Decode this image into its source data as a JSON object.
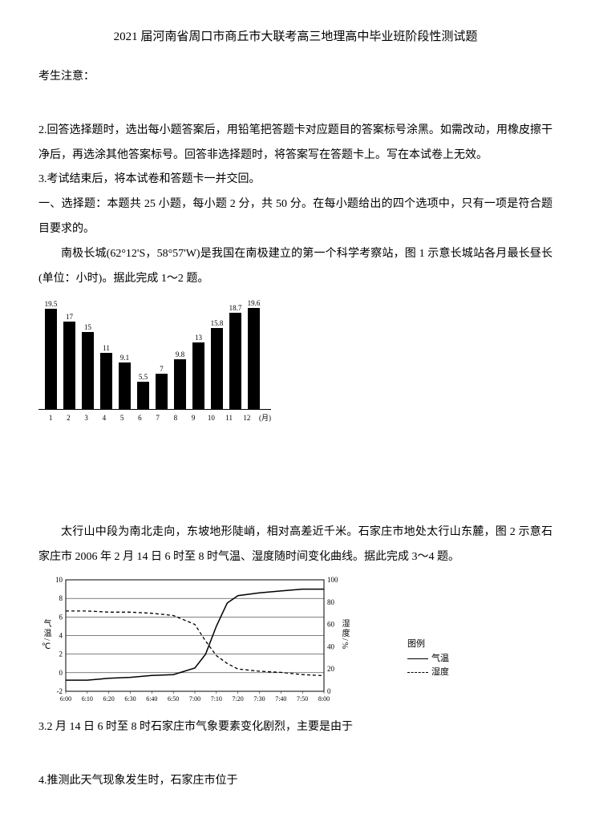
{
  "title": "2021 届河南省周口市商丘市大联考高三地理高中毕业班阶段性测试题",
  "notice_header": "考生注意：",
  "instructions": {
    "i2": "2.回答选择题时，选出每小题答案后，用铅笔把答题卡对应题目的答案标号涂黑。如需改动，用橡皮擦干净后，再选涂其他答案标号。回答非选择题时，将答案写在答题卡上。写在本试卷上无效。",
    "i3": "3.考试结束后，将本试卷和答题卡一并交回。",
    "section1": "一、选择题：本题共 25 小题，每小题 2 分，共 50 分。在每小题给出的四个选项中，只有一项是符合题目要求的。"
  },
  "passage1": "南极长城(62°12'S，58°57'W)是我国在南极建立的第一个科学考察站，图 1 示意长城站各月最长昼长(单位：小时)。据此完成 1～2 题。",
  "bar_chart": {
    "type": "bar",
    "categories": [
      "1",
      "2",
      "3",
      "4",
      "5",
      "6",
      "7",
      "8",
      "9",
      "10",
      "11",
      "12"
    ],
    "values": [
      19.5,
      17,
      15,
      11,
      9.1,
      5.5,
      7,
      9.8,
      13,
      15.8,
      18.7,
      19.6
    ],
    "value_labels": [
      "19.5",
      "17",
      "15",
      "11",
      "9.1",
      "5.5",
      "7",
      "9.8",
      "13",
      "15.8",
      "18.7",
      "19.6"
    ],
    "y_max": 20,
    "bar_color": "#000000",
    "background": "#ffffff",
    "x_unit": "(月)",
    "label_fontsize": 9
  },
  "passage2": "太行山中段为南北走向，东坡地形陡峭，相对高差近千米。石家庄市地处太行山东麓，图 2 示意石家庄市 2006 年 2 月 14 日 6 时至 8 时气温、湿度随时间变化曲线。据此完成 3～4 题。",
  "line_chart": {
    "type": "line",
    "x_ticks": [
      "6:00",
      "6:10",
      "6:20",
      "6:30",
      "6:40",
      "6:50",
      "7:00",
      "7:10",
      "7:20",
      "7:30",
      "7:40",
      "7:50",
      "8:00"
    ],
    "y_left_label": "气温/℃",
    "y_right_label": "湿度/%",
    "y_left_min": -2,
    "y_left_max": 10,
    "y_left_step": 2,
    "y_right_min": 0,
    "y_right_max": 100,
    "y_right_step": 20,
    "series_temp": {
      "name": "气温",
      "style": "solid",
      "color": "#000000",
      "points": [
        [
          0,
          -0.8
        ],
        [
          1,
          -0.8
        ],
        [
          2,
          -0.6
        ],
        [
          3,
          -0.5
        ],
        [
          4,
          -0.3
        ],
        [
          5,
          -0.2
        ],
        [
          6,
          0.5
        ],
        [
          6.5,
          2.0
        ],
        [
          7,
          5.0
        ],
        [
          7.5,
          7.5
        ],
        [
          8,
          8.3
        ],
        [
          9,
          8.6
        ],
        [
          10,
          8.8
        ],
        [
          11,
          9.0
        ],
        [
          12,
          9.0
        ]
      ]
    },
    "series_humid": {
      "name": "湿度",
      "style": "dashed",
      "color": "#000000",
      "points": [
        [
          0,
          72
        ],
        [
          1,
          72
        ],
        [
          2,
          71
        ],
        [
          3,
          71
        ],
        [
          4,
          70
        ],
        [
          5,
          68
        ],
        [
          6,
          60
        ],
        [
          6.5,
          45
        ],
        [
          7,
          32
        ],
        [
          7.5,
          25
        ],
        [
          8,
          20
        ],
        [
          9,
          18
        ],
        [
          10,
          17
        ],
        [
          11,
          15
        ],
        [
          12,
          14
        ]
      ]
    },
    "legend_title": "图例",
    "background": "#ffffff",
    "grid_color": "#000000"
  },
  "q3": "3.2 月 14 日 6 时至 8 时石家庄市气象要素变化剧烈，主要是由于",
  "q4": "4.推测此天气现象发生时，石家庄市位于"
}
